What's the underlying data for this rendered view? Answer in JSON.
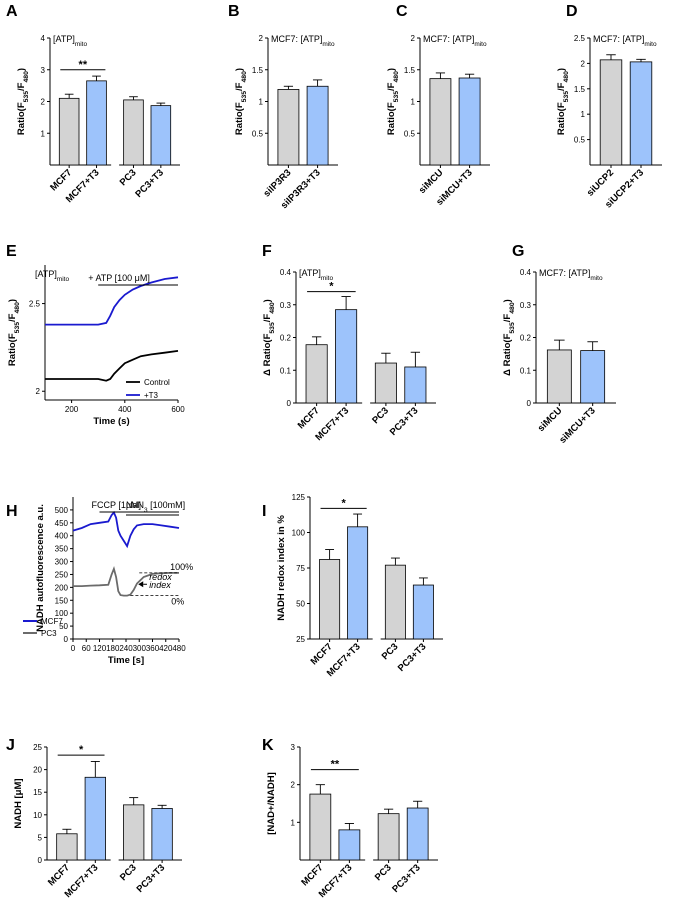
{
  "colors": {
    "grey": "#d3d3d3",
    "blue": "#9dc3fb",
    "line_blue": "#1a1acf",
    "line_black": "#000000",
    "line_grey": "#6b6b6b"
  },
  "chart_data": [
    {
      "id": "A",
      "panel": "A",
      "type": "bar",
      "title": "[ATP]mito",
      "ylabel": "Ratio(F535/F480)",
      "ylim": [
        0,
        4
      ],
      "yticks": [
        1,
        2,
        3,
        4
      ],
      "categories": [
        "MCF7",
        "MCF7+T3",
        "PC3",
        "PC3+T3"
      ],
      "values": [
        2.1,
        2.65,
        2.05,
        1.87
      ],
      "errors": [
        0.13,
        0.15,
        0.1,
        0.08
      ],
      "fills": [
        "grey",
        "blue",
        "grey",
        "blue"
      ],
      "sig": [
        {
          "from": 0,
          "to": 1,
          "text": "**",
          "y": 3.0
        }
      ]
    },
    {
      "id": "B",
      "panel": "B",
      "type": "bar",
      "title": "MCF7: [ATP]mito",
      "ylabel": "Ratio(F535/F480)",
      "ylim": [
        0,
        2.0
      ],
      "yticks": [
        0.5,
        1.0,
        1.5,
        2.0
      ],
      "categories": [
        "siIP3R3",
        "siIP3R3+T3"
      ],
      "values": [
        1.19,
        1.24
      ],
      "errors": [
        0.05,
        0.1
      ],
      "fills": [
        "grey",
        "blue"
      ]
    },
    {
      "id": "C",
      "panel": "C",
      "type": "bar",
      "title": "MCF7: [ATP]mito",
      "ylabel": "Ratio(F535/F480)",
      "ylim": [
        0,
        2.0
      ],
      "yticks": [
        0.5,
        1.0,
        1.5,
        2.0
      ],
      "categories": [
        "siMCU",
        "siMCU+T3"
      ],
      "values": [
        1.36,
        1.37
      ],
      "errors": [
        0.09,
        0.06
      ],
      "fills": [
        "grey",
        "blue"
      ]
    },
    {
      "id": "D",
      "panel": "D",
      "type": "bar",
      "title": "MCF7: [ATP]mito",
      "ylabel": "Ratio(F535/F480)",
      "ylim": [
        0,
        2.5
      ],
      "yticks": [
        0.5,
        1.0,
        1.5,
        2.0,
        2.5
      ],
      "categories": [
        "siUCP2",
        "siUCP2+T3"
      ],
      "values": [
        2.07,
        2.03
      ],
      "errors": [
        0.1,
        0.05
      ],
      "fills": [
        "grey",
        "blue"
      ]
    },
    {
      "id": "E",
      "panel": "E",
      "type": "line",
      "title": "[ATP]mito",
      "annotation": "+ ATP [100 μM]",
      "xlabel": "Time (s)",
      "ylabel": "Ratio(F535/F480)",
      "xlim": [
        100,
        600
      ],
      "xticks": [
        200,
        400,
        600
      ],
      "ylim": [
        1.95,
        2.72
      ],
      "yticks": [
        2.0,
        2.5
      ],
      "series": [
        {
          "name": "+T3",
          "color": "line_blue",
          "x": [
            100,
            150,
            200,
            250,
            300,
            330,
            345,
            360,
            380,
            400,
            430,
            460,
            500,
            550,
            600
          ],
          "y": [
            2.38,
            2.38,
            2.38,
            2.38,
            2.38,
            2.39,
            2.43,
            2.48,
            2.52,
            2.55,
            2.58,
            2.6,
            2.62,
            2.64,
            2.65
          ]
        },
        {
          "name": "Control",
          "color": "line_black",
          "x": [
            100,
            150,
            200,
            250,
            300,
            330,
            345,
            360,
            380,
            400,
            430,
            460,
            500,
            550,
            600
          ],
          "y": [
            2.07,
            2.07,
            2.07,
            2.07,
            2.07,
            2.06,
            2.07,
            2.1,
            2.13,
            2.16,
            2.18,
            2.2,
            2.21,
            2.22,
            2.23
          ]
        }
      ],
      "legend": "bottom-right"
    },
    {
      "id": "F",
      "panel": "F",
      "type": "bar",
      "title": "[ATP]mito",
      "ylabel": "Δ Ratio(F535/F480)",
      "ylim": [
        0,
        0.4
      ],
      "yticks": [
        0.0,
        0.1,
        0.2,
        0.3,
        0.4
      ],
      "categories": [
        "MCF7",
        "MCF7+T3",
        "PC3",
        "PC3+T3"
      ],
      "values": [
        0.178,
        0.285,
        0.122,
        0.11
      ],
      "errors": [
        0.024,
        0.04,
        0.03,
        0.045
      ],
      "fills": [
        "grey",
        "blue",
        "grey",
        "blue"
      ],
      "sig": [
        {
          "from": 0,
          "to": 1,
          "text": "*",
          "y": 0.34
        }
      ]
    },
    {
      "id": "G",
      "panel": "G",
      "type": "bar",
      "title": "MCF7: [ATP]mito",
      "ylabel": "Δ Ratio(F535/F480)",
      "ylim": [
        0,
        0.4
      ],
      "yticks": [
        0.0,
        0.1,
        0.2,
        0.3,
        0.4
      ],
      "categories": [
        "siMCU",
        "siMCU+T3"
      ],
      "values": [
        0.162,
        0.16
      ],
      "errors": [
        0.03,
        0.027
      ],
      "fills": [
        "grey",
        "blue"
      ]
    },
    {
      "id": "H",
      "panel": "H",
      "type": "line",
      "annotations": [
        "FCCP [1μM]",
        "NaN3 [100mM]",
        "100%",
        "0%",
        "redox",
        "index"
      ],
      "xlabel": "Time [s]",
      "ylabel": "NADH autofluorescence a.u.",
      "xlim": [
        0,
        480
      ],
      "xticks": [
        0,
        60,
        120,
        180,
        240,
        300,
        360,
        420,
        480
      ],
      "ylim": [
        0,
        550
      ],
      "yticks": [
        0,
        50,
        100,
        150,
        200,
        250,
        300,
        350,
        400,
        450,
        500
      ],
      "series": [
        {
          "name": "MCF7",
          "color": "line_blue",
          "x": [
            0,
            40,
            80,
            120,
            160,
            175,
            185,
            195,
            205,
            215,
            230,
            245,
            260,
            275,
            290,
            320,
            360,
            400,
            440,
            480
          ],
          "y": [
            420,
            430,
            445,
            450,
            455,
            480,
            490,
            470,
            420,
            400,
            380,
            360,
            400,
            425,
            440,
            445,
            445,
            440,
            435,
            430
          ]
        },
        {
          "name": "PC3",
          "color": "line_grey",
          "x": [
            0,
            40,
            80,
            120,
            160,
            175,
            185,
            195,
            205,
            215,
            230,
            245,
            260,
            275,
            290,
            320,
            360,
            400,
            440,
            480
          ],
          "y": [
            205,
            205,
            207,
            208,
            210,
            250,
            272,
            240,
            185,
            170,
            168,
            168,
            172,
            190,
            215,
            240,
            252,
            255,
            256,
            256
          ]
        }
      ],
      "legend": "bottom-left"
    },
    {
      "id": "I",
      "panel": "I",
      "type": "bar",
      "ylabel": "NADH redox index in %",
      "ylim": [
        25,
        125
      ],
      "yticks": [
        25,
        50,
        75,
        100,
        125
      ],
      "categories": [
        "MCF7",
        "MCF7+T3",
        "PC3",
        "PC3+T3"
      ],
      "values": [
        81,
        104,
        77,
        63
      ],
      "errors": [
        7,
        9,
        5,
        5
      ],
      "fills": [
        "grey",
        "blue",
        "grey",
        "blue"
      ],
      "sig": [
        {
          "from": 0,
          "to": 1,
          "text": "*",
          "y": 117
        }
      ]
    },
    {
      "id": "J",
      "panel": "J",
      "type": "bar",
      "ylabel": "NADH [μM]",
      "ylim": [
        0,
        25
      ],
      "yticks": [
        0,
        5,
        10,
        15,
        20,
        25
      ],
      "categories": [
        "MCF7",
        "MCF7+T3",
        "PC3",
        "PC3+T3"
      ],
      "values": [
        5.8,
        18.3,
        12.2,
        11.4
      ],
      "errors": [
        1.0,
        3.5,
        1.6,
        0.7
      ],
      "fills": [
        "grey",
        "blue",
        "grey",
        "blue"
      ],
      "sig": [
        {
          "from": 0,
          "to": 1,
          "text": "*",
          "y": 23.2
        }
      ]
    },
    {
      "id": "K",
      "panel": "K",
      "type": "bar",
      "ylabel": "[NAD+/NADH]",
      "ylim": [
        0,
        3
      ],
      "yticks": [
        1,
        2,
        3
      ],
      "categories": [
        "MCF7",
        "MCF7+T3",
        "PC3",
        "PC3+T3"
      ],
      "values": [
        1.75,
        0.8,
        1.23,
        1.38
      ],
      "errors": [
        0.25,
        0.17,
        0.12,
        0.18
      ],
      "fills": [
        "grey",
        "blue",
        "grey",
        "blue"
      ],
      "sig": [
        {
          "from": 0,
          "to": 1,
          "text": "**",
          "y": 2.4
        }
      ]
    }
  ]
}
